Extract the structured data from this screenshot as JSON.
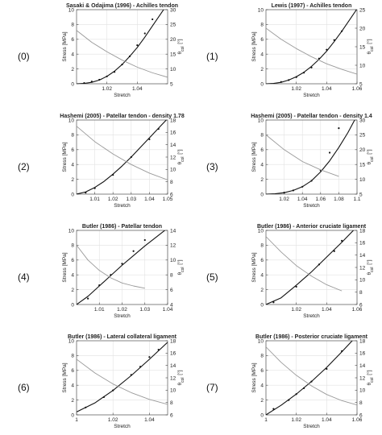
{
  "chart_data": [
    {
      "type": "line",
      "label": "(0)",
      "title": "Sasaki & Odajima (1996) - Achilles tendon",
      "xlabel": "Stretch",
      "ylabel": "Stress [MPa]",
      "y2label": "θ_col [°]",
      "xlim": [
        1,
        1.06
      ],
      "xticks": [
        "1.02",
        "1.04"
      ],
      "xtick_values": [
        1.02,
        1.04
      ],
      "ylim": [
        0,
        10
      ],
      "yticks": [
        "0",
        "2",
        "4",
        "6",
        "8",
        "10"
      ],
      "y2lim": [
        5,
        30
      ],
      "y2ticks": [
        "5",
        "10",
        "15",
        "20",
        "25",
        "30"
      ],
      "series": [
        {
          "role": "stress-model",
          "color": "#111111",
          "x": [
            1,
            1.005,
            1.01,
            1.015,
            1.02,
            1.025,
            1.03,
            1.035,
            1.04,
            1.045,
            1.05,
            1.055,
            1.06
          ],
          "y": [
            0,
            0.05,
            0.2,
            0.5,
            1.0,
            1.7,
            2.6,
            3.7,
            4.9,
            6.3,
            7.8,
            9.3,
            10.8
          ]
        },
        {
          "role": "stress-data",
          "color": "#111111",
          "x": [
            1.005,
            1.01,
            1.015,
            1.02,
            1.025,
            1.03,
            1.035,
            1.04,
            1.045,
            1.05
          ],
          "y": [
            0.1,
            0.3,
            0.55,
            1.0,
            1.6,
            2.6,
            3.7,
            5.2,
            6.8,
            8.7
          ]
        },
        {
          "role": "angle-model",
          "axis": "right",
          "color": "#999999",
          "x": [
            1,
            1.01,
            1.02,
            1.03,
            1.04,
            1.05,
            1.06
          ],
          "y": [
            23,
            19,
            15.8,
            13,
            10.6,
            8.7,
            7.2
          ]
        }
      ]
    },
    {
      "type": "line",
      "label": "(1)",
      "title": "Lewis (1997) - Achilles tendon",
      "xlabel": "Stretch",
      "ylabel": "Stress [MPa]",
      "y2label": "θ_col [°]",
      "xlim": [
        1,
        1.06
      ],
      "xticks": [
        "1.02",
        "1.04",
        "1.06"
      ],
      "xtick_values": [
        1.02,
        1.04,
        1.06
      ],
      "ylim": [
        0,
        10
      ],
      "yticks": [
        "0",
        "2",
        "4",
        "6",
        "8",
        "10"
      ],
      "y2lim": [
        5,
        25
      ],
      "y2ticks": [
        "5",
        "10",
        "15",
        "20",
        "25"
      ],
      "series": [
        {
          "role": "stress-model",
          "color": "#111111",
          "x": [
            1,
            1.005,
            1.01,
            1.015,
            1.02,
            1.025,
            1.03,
            1.035,
            1.04,
            1.045,
            1.05,
            1.055,
            1.06
          ],
          "y": [
            0,
            0.05,
            0.2,
            0.5,
            0.95,
            1.55,
            2.35,
            3.3,
            4.4,
            5.7,
            7.1,
            8.6,
            10.1
          ]
        },
        {
          "role": "stress-data",
          "color": "#111111",
          "x": [
            1.01,
            1.015,
            1.02,
            1.025,
            1.03,
            1.035,
            1.04,
            1.045,
            1.05
          ],
          "y": [
            0.25,
            0.5,
            0.9,
            1.5,
            2.2,
            3.4,
            4.6,
            5.9,
            7.1
          ]
        },
        {
          "role": "angle-model",
          "axis": "right",
          "color": "#999999",
          "x": [
            1,
            1.01,
            1.02,
            1.03,
            1.04,
            1.05,
            1.06
          ],
          "y": [
            20,
            17,
            14.5,
            12.3,
            10.4,
            8.9,
            7.6
          ]
        }
      ]
    },
    {
      "type": "line",
      "label": "(2)",
      "title": "Hashemi (2005) - Patellar tendon - density 1.78",
      "xlabel": "Stretch",
      "ylabel": "Stress [MPa]",
      "y2label": "θ_col [°]",
      "xlim": [
        1,
        1.05
      ],
      "xticks": [
        "1.01",
        "1.02",
        "1.03",
        "1.04",
        "1.05"
      ],
      "xtick_values": [
        1.01,
        1.02,
        1.03,
        1.04,
        1.05
      ],
      "ylim": [
        0,
        10
      ],
      "yticks": [
        "0",
        "2",
        "4",
        "6",
        "8",
        "10"
      ],
      "y2lim": [
        6,
        18
      ],
      "y2ticks": [
        "6",
        "8",
        "10",
        "12",
        "14",
        "16",
        "18"
      ],
      "series": [
        {
          "role": "stress-model",
          "color": "#111111",
          "x": [
            1,
            1.005,
            1.01,
            1.015,
            1.02,
            1.025,
            1.03,
            1.035,
            1.04,
            1.045,
            1.05
          ],
          "y": [
            0,
            0.3,
            0.9,
            1.7,
            2.7,
            3.8,
            5.0,
            6.3,
            7.6,
            8.9,
            10.2
          ]
        },
        {
          "role": "stress-data",
          "color": "#111111",
          "x": [
            1.005,
            1.01,
            1.02,
            1.03,
            1.04,
            1.045
          ],
          "y": [
            0.2,
            0.8,
            2.6,
            5.0,
            7.4,
            8.8
          ]
        },
        {
          "role": "angle-model",
          "axis": "right",
          "color": "#999999",
          "x": [
            1,
            1.01,
            1.02,
            1.03,
            1.04,
            1.05
          ],
          "y": [
            17,
            14.5,
            12.5,
            10.8,
            9.4,
            8.3
          ]
        }
      ]
    },
    {
      "type": "line",
      "label": "(3)",
      "title": "Hashemi (2005) - Patellar tendon - density 1.4",
      "xlabel": "Stretch",
      "ylabel": "Stress [MPa]",
      "y2label": "θ_col [°]",
      "xlim": [
        1,
        1.1
      ],
      "xticks": [
        "1.02",
        "1.04",
        "1.06",
        "1.08",
        "1.1"
      ],
      "xtick_values": [
        1.02,
        1.04,
        1.06,
        1.08,
        1.1
      ],
      "ylim": [
        0,
        10
      ],
      "yticks": [
        "0",
        "2",
        "4",
        "6",
        "8",
        "10"
      ],
      "y2lim": [
        5,
        30
      ],
      "y2ticks": [
        "5",
        "10",
        "15",
        "20",
        "25",
        "30"
      ],
      "series": [
        {
          "role": "stress-model",
          "color": "#111111",
          "x": [
            1,
            1.01,
            1.02,
            1.03,
            1.04,
            1.05,
            1.06,
            1.07,
            1.08,
            1.09,
            1.1
          ],
          "y": [
            0,
            0.05,
            0.2,
            0.5,
            1.0,
            1.8,
            3.0,
            4.5,
            6.3,
            8.3,
            10.6
          ]
        },
        {
          "role": "stress-data",
          "color": "#111111",
          "x": [
            1.02,
            1.03,
            1.04,
            1.05,
            1.06,
            1.07,
            1.08
          ],
          "y": [
            0.2,
            0.5,
            1.0,
            1.8,
            3.2,
            5.6,
            8.9
          ]
        },
        {
          "role": "angle-model",
          "axis": "right",
          "color": "#999999",
          "x": [
            1,
            1.02,
            1.04,
            1.06,
            1.08
          ],
          "y": [
            25,
            20,
            16,
            13.2,
            11
          ]
        }
      ]
    },
    {
      "type": "line",
      "label": "(4)",
      "title": "Butler (1986) - Patellar tendon",
      "xlabel": "Stretch",
      "ylabel": "Stress [MPa]",
      "y2label": "θ_col [°]",
      "xlim": [
        1,
        1.04
      ],
      "xticks": [
        "1.01",
        "1.02",
        "1.03",
        "1.04"
      ],
      "xtick_values": [
        1.01,
        1.02,
        1.03,
        1.04
      ],
      "ylim": [
        0,
        10
      ],
      "yticks": [
        "0",
        "2",
        "4",
        "6",
        "8",
        "10"
      ],
      "y2lim": [
        4,
        14
      ],
      "y2ticks": [
        "4",
        "6",
        "8",
        "10",
        "12",
        "14"
      ],
      "series": [
        {
          "role": "stress-model",
          "color": "#111111",
          "x": [
            1,
            1.005,
            1.01,
            1.015,
            1.02,
            1.025,
            1.03,
            1.035,
            1.04
          ],
          "y": [
            0,
            1.1,
            2.5,
            3.9,
            5.3,
            6.6,
            7.9,
            9.1,
            10.3
          ]
        },
        {
          "role": "stress-data",
          "color": "#111111",
          "x": [
            1.005,
            1.01,
            1.015,
            1.02,
            1.025,
            1.03
          ],
          "y": [
            0.8,
            2.6,
            4.0,
            5.5,
            7.2,
            8.7
          ]
        },
        {
          "role": "angle-model",
          "axis": "right",
          "color": "#999999",
          "x": [
            1,
            1.005,
            1.01,
            1.015,
            1.02,
            1.025,
            1.03
          ],
          "y": [
            12,
            10,
            8.6,
            7.6,
            6.9,
            6.5,
            6.2
          ]
        }
      ]
    },
    {
      "type": "line",
      "label": "(5)",
      "title": "Butler (1986) - Anterior cruciate ligament",
      "xlabel": "Stretch",
      "ylabel": "Stress [MPa]",
      "y2label": "θ_col [°]",
      "xlim": [
        1,
        1.06
      ],
      "xticks": [
        "1.02",
        "1.04",
        "1.06"
      ],
      "xtick_values": [
        1.02,
        1.04,
        1.06
      ],
      "ylim": [
        0,
        10
      ],
      "yticks": [
        "0",
        "2",
        "4",
        "6",
        "8",
        "10"
      ],
      "y2lim": [
        6,
        18
      ],
      "y2ticks": [
        "6",
        "8",
        "10",
        "12",
        "14",
        "16",
        "18"
      ],
      "series": [
        {
          "role": "stress-model",
          "color": "#111111",
          "x": [
            1,
            1.01,
            1.02,
            1.03,
            1.04,
            1.05,
            1.06
          ],
          "y": [
            0,
            0.9,
            2.6,
            4.4,
            6.4,
            8.4,
            10.5
          ]
        },
        {
          "role": "stress-data",
          "color": "#111111",
          "x": [
            1.005,
            1.02,
            1.035,
            1.045,
            1.05
          ],
          "y": [
            0.3,
            2.4,
            5.4,
            7.2,
            8.6
          ]
        },
        {
          "role": "angle-model",
          "axis": "right",
          "color": "#999999",
          "x": [
            1,
            1.01,
            1.02,
            1.03,
            1.04,
            1.05
          ],
          "y": [
            17,
            14.5,
            12.3,
            10.6,
            9.2,
            8.2
          ]
        }
      ]
    },
    {
      "type": "line",
      "label": "(6)",
      "title": "Butler (1986) - Lateral collateral ligament",
      "xlabel": "Stretch",
      "ylabel": "Stress [MPa]",
      "y2label": "θ_col [°]",
      "xlim": [
        1,
        1.05
      ],
      "xticks": [
        "1",
        "1.02",
        "1.04"
      ],
      "xtick_values": [
        1,
        1.02,
        1.04
      ],
      "ylim": [
        0,
        10
      ],
      "yticks": [
        "0",
        "2",
        "4",
        "6",
        "8",
        "10"
      ],
      "y2lim": [
        6,
        18
      ],
      "y2ticks": [
        "6",
        "8",
        "10",
        "12",
        "14",
        "16",
        "18"
      ],
      "series": [
        {
          "role": "stress-model",
          "color": "#111111",
          "x": [
            1,
            1.01,
            1.02,
            1.03,
            1.04,
            1.05
          ],
          "y": [
            0.4,
            1.6,
            3.3,
            5.3,
            7.5,
            9.8
          ]
        },
        {
          "role": "stress-data",
          "color": "#111111",
          "x": [
            1.005,
            1.015,
            1.02,
            1.03,
            1.035,
            1.04,
            1.045
          ],
          "y": [
            1.0,
            2.4,
            3.3,
            5.4,
            6.5,
            7.8,
            8.8
          ]
        },
        {
          "role": "angle-model",
          "axis": "right",
          "color": "#999999",
          "x": [
            1,
            1.01,
            1.02,
            1.03,
            1.04,
            1.05
          ],
          "y": [
            15,
            12.8,
            11,
            9.6,
            8.5,
            7.7
          ]
        }
      ]
    },
    {
      "type": "line",
      "label": "(7)",
      "title": "Butler (1986) - Posterior cruciate ligament",
      "xlabel": "Stretch",
      "ylabel": "Stress [MPa]",
      "y2label": "θ_col [°]",
      "xlim": [
        1,
        1.06
      ],
      "xticks": [
        "1",
        "1.02",
        "1.04",
        "1.06"
      ],
      "xtick_values": [
        1,
        1.02,
        1.04,
        1.06
      ],
      "ylim": [
        0,
        10
      ],
      "yticks": [
        "0",
        "2",
        "4",
        "6",
        "8",
        "10"
      ],
      "y2lim": [
        6,
        18
      ],
      "y2ticks": [
        "6",
        "8",
        "10",
        "12",
        "14",
        "16",
        "18"
      ],
      "series": [
        {
          "role": "stress-model",
          "color": "#111111",
          "x": [
            1,
            1.01,
            1.02,
            1.03,
            1.04,
            1.05,
            1.06
          ],
          "y": [
            0,
            1.3,
            2.8,
            4.5,
            6.4,
            8.5,
            10.7
          ]
        },
        {
          "role": "stress-data",
          "color": "#111111",
          "x": [
            1.005,
            1.015,
            1.02,
            1.025,
            1.03,
            1.04,
            1.05
          ],
          "y": [
            0.8,
            2.0,
            2.8,
            3.6,
            4.5,
            6.2,
            8.6
          ]
        },
        {
          "role": "angle-model",
          "axis": "right",
          "color": "#999999",
          "x": [
            1,
            1.01,
            1.02,
            1.03,
            1.04,
            1.05,
            1.06
          ],
          "y": [
            17,
            14.5,
            12.4,
            10.7,
            9.3,
            8.3,
            7.6
          ]
        }
      ]
    }
  ]
}
